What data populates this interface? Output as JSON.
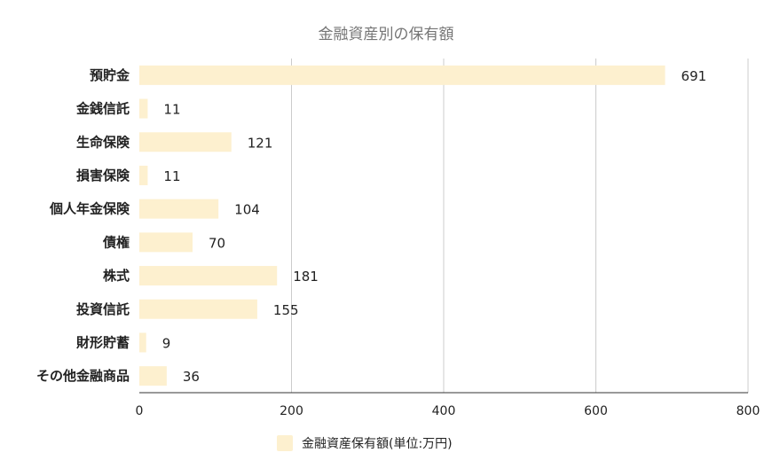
{
  "chart_data": {
    "type": "bar",
    "orientation": "horizontal",
    "title": "金融資産別の保有額",
    "categories": [
      "預貯金",
      "金銭信託",
      "生命保険",
      "損害保険",
      "個人年金保険",
      "債権",
      "株式",
      "投資信託",
      "財形貯蓄",
      "その他金融商品"
    ],
    "series": [
      {
        "name": "金融資産保有額(単位:万円)",
        "values": [
          691,
          11,
          121,
          11,
          104,
          70,
          181,
          155,
          9,
          36
        ],
        "color": "#fdf0cf"
      }
    ],
    "x_ticks": [
      "0",
      "200",
      "400",
      "600",
      "800"
    ],
    "xlim": [
      0,
      800
    ],
    "grid": true,
    "legend_position": "bottom",
    "data_labels": true
  }
}
